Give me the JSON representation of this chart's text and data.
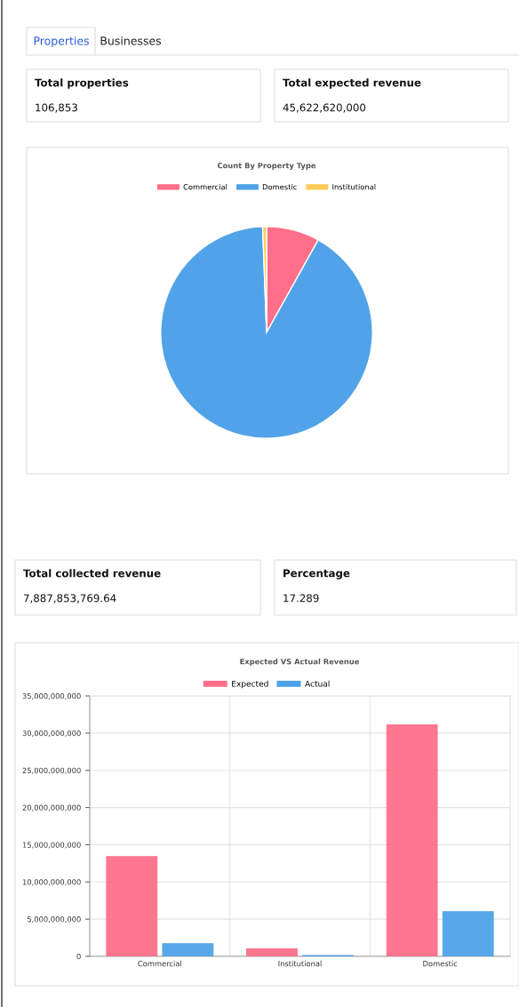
{
  "chart_data": [
    {
      "type": "other",
      "annotations": [
        "Properties",
        "Businesses",
        "Total properties",
        "106,853",
        "Total expected revenue",
        "45,622,620,000"
      ]
    },
    {
      "type": "pie",
      "title": "Count By Property Type",
      "categories": [
        "Commercial",
        "Domestic",
        "Institutional"
      ],
      "values": [
        8.1,
        91.3,
        0.6
      ],
      "colors": [
        "#ff6f8a",
        "#50a3e8",
        "#ffcd56"
      ],
      "legend": "top"
    },
    {
      "type": "other",
      "annotations": [
        "Total collected revenue",
        "7,887,853,769.64",
        "Percentage",
        "17.289"
      ]
    },
    {
      "type": "bar",
      "title": "Expected VS Actual Revenue",
      "categories": [
        "Commercial",
        "Institutional",
        "Domestic"
      ],
      "series": [
        {
          "name": "Expected",
          "color": "#ff6f8a",
          "values": [
            13400000000,
            1000000000,
            31100000000
          ]
        },
        {
          "name": "Actual",
          "color": "#50a3e8",
          "values": [
            1700000000,
            100000000,
            6000000000
          ]
        }
      ],
      "ylim": [
        0,
        35000000000
      ],
      "yticks": [
        {
          "value": 0,
          "label": "0"
        },
        {
          "value": 5000000000,
          "label": "5,000,000,000"
        },
        {
          "value": 10000000000,
          "label": "10,000,000,000"
        },
        {
          "value": 15000000000,
          "label": "15,000,000,000"
        },
        {
          "value": 20000000000,
          "label": "20,000,000,000"
        },
        {
          "value": 25000000000,
          "label": "25,000,000,000"
        },
        {
          "value": 30000000000,
          "label": "30,000,000,000"
        },
        {
          "value": 35000000000,
          "label": "35,000,000,000"
        }
      ],
      "grid": true,
      "legend": "top"
    }
  ]
}
